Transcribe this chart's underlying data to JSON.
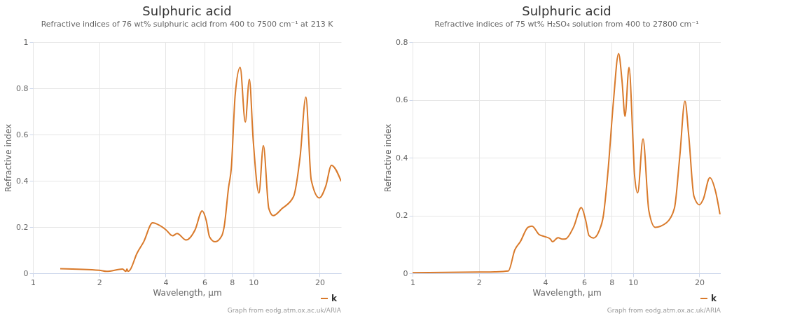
{
  "chart_data": [
    {
      "type": "line",
      "title": "Sulphuric acid",
      "subtitle": "Refractive indices of 76 wt% sulphuric acid from 400 to 7500 cm⁻¹ at 213 K",
      "xlabel": "Wavelength, µm",
      "ylabel": "Refractive index",
      "log": "x",
      "grid": true,
      "legend": "bottom right",
      "xlim": [
        1,
        25
      ],
      "xticks": [
        1,
        2,
        4,
        6,
        8,
        10,
        20
      ],
      "ylim": [
        0,
        1
      ],
      "yticks": [
        0,
        0.2,
        0.4,
        0.6,
        0.8,
        1
      ],
      "x": [
        1.33,
        2.0,
        2.16,
        2.55,
        2.64,
        2.67,
        2.7,
        2.76,
        2.96,
        3.18,
        3.49,
        3.74,
        4.01,
        4.3,
        4.51,
        4.95,
        5.44,
        5.86,
        6.11,
        6.33,
        6.71,
        7.19,
        7.36,
        7.72,
        7.94,
        8.27,
        8.71,
        9.19,
        9.59,
        9.98,
        10.6,
        11.1,
        11.75,
        12.3,
        13.5,
        15.2,
        16.3,
        17.3,
        18.3,
        19.9,
        21.3,
        22.6,
        25
      ],
      "series": [
        {
          "name": "k",
          "color": "#d97a2b",
          "values": [
            0.02,
            0.013,
            0.008,
            0.018,
            0.008,
            0.018,
            0.008,
            0.015,
            0.085,
            0.136,
            0.218,
            0.208,
            0.188,
            0.162,
            0.172,
            0.144,
            0.188,
            0.27,
            0.229,
            0.157,
            0.136,
            0.162,
            0.198,
            0.372,
            0.454,
            0.772,
            0.89,
            0.654,
            0.839,
            0.577,
            0.347,
            0.552,
            0.28,
            0.249,
            0.28,
            0.331,
            0.506,
            0.762,
            0.403,
            0.326,
            0.377,
            0.467,
            0.398
          ]
        }
      ],
      "annotations": [
        "Graph from eodg.atm.ox.ac.uk/ARIA"
      ]
    },
    {
      "type": "line",
      "title": "Sulphuric acid",
      "subtitle": "Refractive indices of 75 wt% H₂SO₄ solution from 400 to 27800 cm⁻¹",
      "xlabel": "Wavelength, µm",
      "ylabel": "Refractive index",
      "log": "x",
      "grid": true,
      "legend": "bottom right",
      "xlim": [
        1,
        25
      ],
      "xticks": [
        1,
        2,
        4,
        6,
        8,
        10,
        20
      ],
      "ylim": [
        0,
        0.8
      ],
      "yticks": [
        0,
        0.2,
        0.4,
        0.6,
        0.8
      ],
      "x": [
        1,
        2,
        2.36,
        2.72,
        2.91,
        3.08,
        3.34,
        3.48,
        3.75,
        3.97,
        4.21,
        4.31,
        4.57,
        4.79,
        4.95,
        5.37,
        5.83,
        6.1,
        6.32,
        6.62,
        7.01,
        7.34,
        7.69,
        8.15,
        8.6,
        8.91,
        9.2,
        9.59,
        10.0,
        10.16,
        10.5,
        11.1,
        11.8,
        12.6,
        14.2,
        15.4,
        16.3,
        17.2,
        17.9,
        18.9,
        20.0,
        20.8,
        22.3,
        23.7,
        24.8
      ],
      "series": [
        {
          "name": "k",
          "color": "#d97a2b",
          "values": [
            0.002,
            0.004,
            0.005,
            0.008,
            0.081,
            0.109,
            0.159,
            0.163,
            0.134,
            0.127,
            0.119,
            0.109,
            0.123,
            0.118,
            0.119,
            0.159,
            0.227,
            0.183,
            0.13,
            0.122,
            0.146,
            0.2,
            0.348,
            0.594,
            0.76,
            0.668,
            0.543,
            0.712,
            0.455,
            0.34,
            0.278,
            0.465,
            0.216,
            0.159,
            0.175,
            0.224,
            0.405,
            0.596,
            0.475,
            0.266,
            0.237,
            0.255,
            0.331,
            0.282,
            0.204
          ]
        }
      ],
      "annotations": [
        "Graph from eodg.atm.ox.ac.uk/ARIA"
      ]
    }
  ]
}
